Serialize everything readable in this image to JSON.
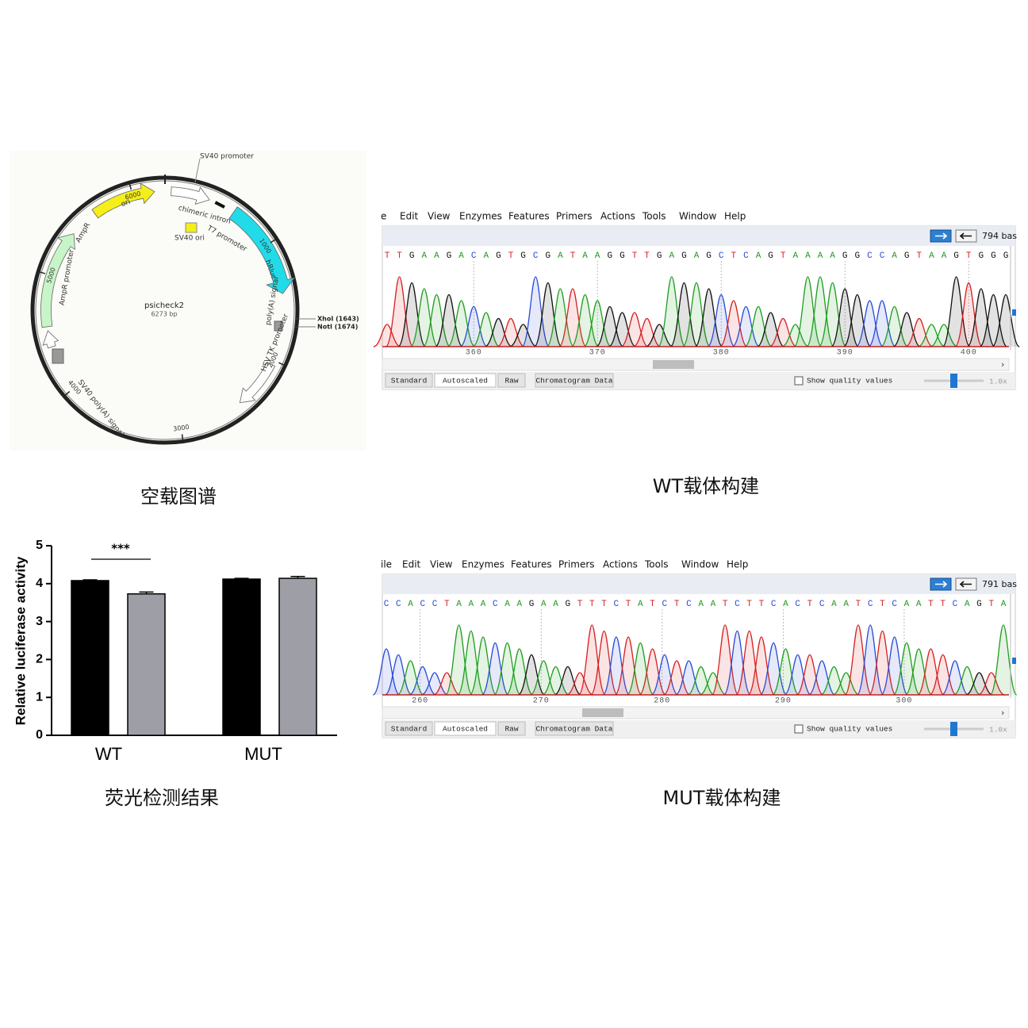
{
  "plasmid": {
    "name": "psicheck2",
    "size": "6273 bp",
    "features": [
      "SV40 promoter",
      "chimeric intron",
      "T7 promoter",
      "SV40 ori",
      "hRluc",
      "poly(A) signal",
      "HSV TK promoter",
      "ori",
      "AmpR",
      "AmpR promoter",
      "SV40 poly(A) signal"
    ],
    "ticks": [
      1000,
      2000,
      3000,
      4000,
      5000,
      6000
    ],
    "sites": [
      "XhoI (1643)",
      "NotI (1674)"
    ]
  },
  "captions": [
    "空载图谱",
    "WT载体构建",
    "荧光检测结果",
    "MUT载体构建"
  ],
  "chart_data": {
    "type": "bar",
    "ylabel": "Relative luciferase activity",
    "categories": [
      "WT",
      "MUT"
    ],
    "series": [
      {
        "color": "#000000",
        "values": [
          4.08,
          4.12
        ],
        "errors": [
          0.02,
          0.02
        ]
      },
      {
        "color": "#9e9ea6",
        "values": [
          3.73,
          4.14
        ],
        "errors": [
          0.05,
          0.05
        ]
      }
    ],
    "ylim": [
      0,
      5
    ],
    "yticks": [
      0,
      1,
      2,
      3,
      4,
      5
    ],
    "annotation": "***"
  },
  "chromatograms": [
    {
      "menu": [
        "e",
        "Edit",
        "View",
        "Enzymes",
        "Features",
        "Primers",
        "Actions",
        "Tools",
        "Window",
        "Help"
      ],
      "length": "794 bas",
      "bases": [
        "T",
        "T",
        "G",
        "A",
        "A",
        "G",
        "A",
        "C",
        "A",
        "G",
        "T",
        "G",
        "C",
        "G",
        "A",
        "T",
        "A",
        "A",
        "G",
        "G",
        "T",
        "T",
        "G",
        "A",
        "G",
        "A",
        "G",
        "C",
        "T",
        "C",
        "A",
        "G",
        "T",
        "A",
        "A",
        "A",
        "A",
        "G",
        "G",
        "C",
        "C",
        "A",
        "G",
        "T",
        "A",
        "A",
        "G",
        "T",
        "G",
        "G",
        "G"
      ],
      "ticks": [
        360,
        370,
        380,
        390,
        400
      ],
      "buttons": [
        "Standard",
        "Autoscaled",
        "Raw",
        "Chromatogram Data"
      ],
      "quality": "Show quality values",
      "zoom": "1.0x"
    },
    {
      "menu": [
        "ile",
        "Edit",
        "View",
        "Enzymes",
        "Features",
        "Primers",
        "Actions",
        "Tools",
        "Window",
        "Help"
      ],
      "length": "791 bas",
      "bases": [
        "C",
        "C",
        "A",
        "C",
        "C",
        "T",
        "A",
        "A",
        "A",
        "C",
        "A",
        "A",
        "G",
        "A",
        "A",
        "G",
        "T",
        "T",
        "T",
        "C",
        "T",
        "A",
        "T",
        "C",
        "T",
        "C",
        "A",
        "A",
        "T",
        "C",
        "T",
        "T",
        "C",
        "A",
        "C",
        "T",
        "C",
        "A",
        "A",
        "T",
        "C",
        "T",
        "C",
        "A",
        "A",
        "T",
        "T",
        "C",
        "A",
        "G",
        "T",
        "A"
      ],
      "ticks": [
        260,
        270,
        280,
        290,
        300
      ],
      "buttons": [
        "Standard",
        "Autoscaled",
        "Raw",
        "Chromatogram Data"
      ],
      "quality": "Show quality values",
      "zoom": "1.0x"
    }
  ]
}
